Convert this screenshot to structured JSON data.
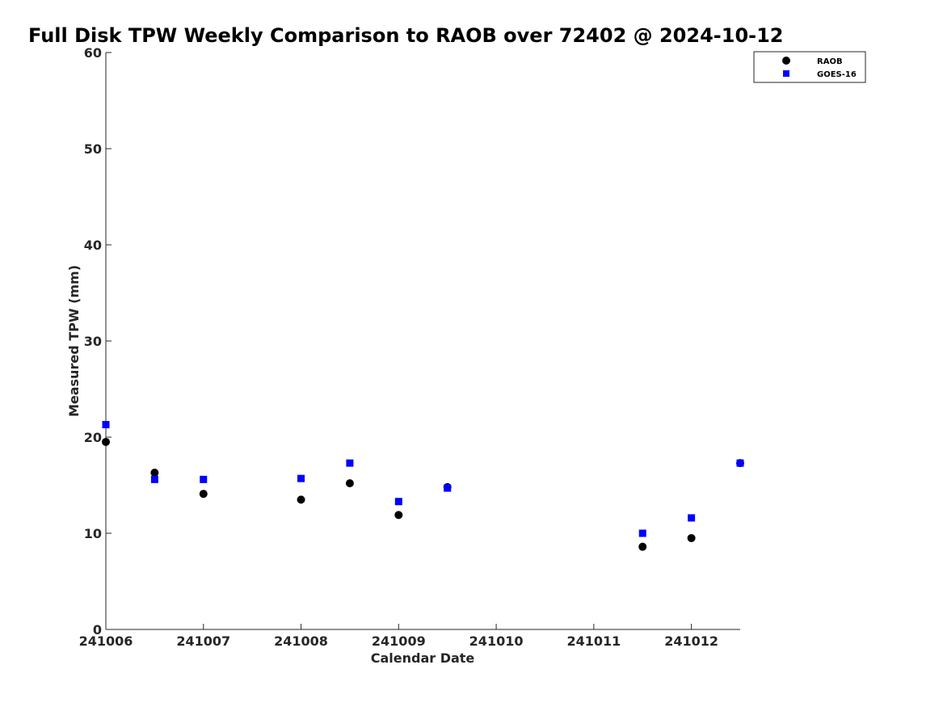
{
  "chart_data": {
    "type": "scatter",
    "title": "Full Disk TPW Weekly Comparison to RAOB over 72402 @ 2024-10-12",
    "xlabel": "Calendar Date",
    "ylabel": "Measured TPW (mm)",
    "x_tick_labels": [
      "241006",
      "241007",
      "241008",
      "241009",
      "241010",
      "241011",
      "241012"
    ],
    "y_ticks": [
      0,
      10,
      20,
      30,
      40,
      50,
      60
    ],
    "xlim": [
      0,
      6.5
    ],
    "ylim": [
      0,
      60
    ],
    "grid": false,
    "legend_position": "top-right",
    "series": [
      {
        "name": "RAOB",
        "marker": "circle",
        "color": "#000000",
        "points": [
          {
            "x": 0.0,
            "y": 19.5
          },
          {
            "x": 0.5,
            "y": 16.3
          },
          {
            "x": 1.0,
            "y": 14.1
          },
          {
            "x": 2.0,
            "y": 13.5
          },
          {
            "x": 2.5,
            "y": 15.2
          },
          {
            "x": 3.0,
            "y": 11.9
          },
          {
            "x": 3.5,
            "y": 14.8
          },
          {
            "x": 5.5,
            "y": 8.6
          },
          {
            "x": 6.0,
            "y": 9.5
          },
          {
            "x": 6.5,
            "y": 17.3
          }
        ]
      },
      {
        "name": "GOES-16",
        "marker": "square",
        "color": "#0000ff",
        "points": [
          {
            "x": 0.0,
            "y": 21.3
          },
          {
            "x": 0.5,
            "y": 15.6
          },
          {
            "x": 1.0,
            "y": 15.6
          },
          {
            "x": 2.0,
            "y": 15.7
          },
          {
            "x": 2.5,
            "y": 17.3
          },
          {
            "x": 3.0,
            "y": 13.3
          },
          {
            "x": 3.5,
            "y": 14.7
          },
          {
            "x": 5.5,
            "y": 10.0
          },
          {
            "x": 6.0,
            "y": 11.6
          },
          {
            "x": 6.5,
            "y": 17.3
          }
        ]
      }
    ]
  }
}
